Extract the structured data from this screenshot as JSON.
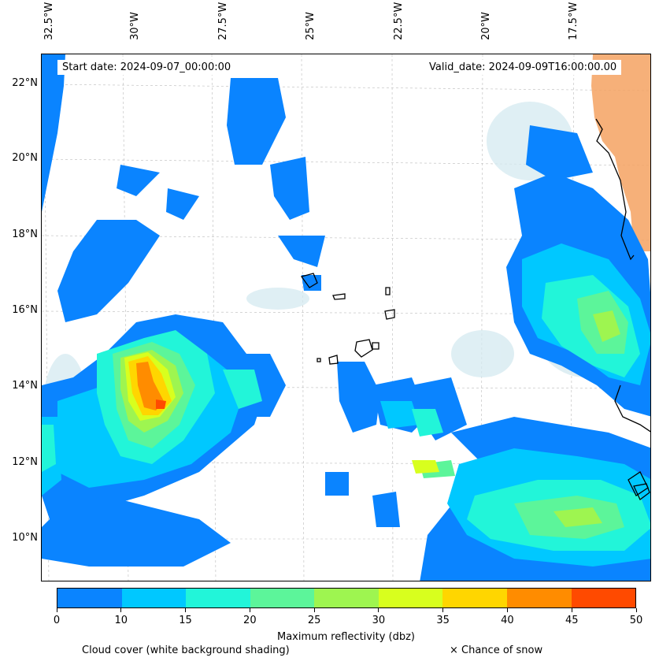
{
  "map": {
    "start_date": "Start date: 2024-09-07_00:00:00",
    "valid_date": "Valid_date: 2024-09-09T16:00:00.00",
    "longitude_labels": [
      "32.5°W",
      "30°W",
      "27.5°W",
      "25°W",
      "22.5°W",
      "20°W",
      "17.5°W"
    ],
    "latitude_labels": [
      "22°N",
      "20°N",
      "18°N",
      "16°N",
      "14°N",
      "12°N",
      "10°N"
    ],
    "colors": {
      "land": "#f4a261",
      "coast": "#000000",
      "cloud": "#cfe6ee"
    }
  },
  "legend": {
    "title": "Maximum reflectivity (dbz)",
    "ticks": [
      "0",
      "10",
      "15",
      "20",
      "25",
      "30",
      "35",
      "40",
      "45",
      "50"
    ],
    "colors": [
      "#0a84ff",
      "#00c8ff",
      "#22f5d9",
      "#5cf59a",
      "#9ef550",
      "#d8ff1e",
      "#ffd600",
      "#ff8c00",
      "#ff4a00"
    ],
    "cloud_note": "Cloud cover (white background shading)",
    "snow_note": "× Chance of snow"
  }
}
